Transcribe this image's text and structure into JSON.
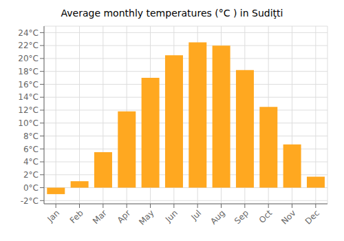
{
  "chart_data": {
    "type": "bar",
    "title": "Average monthly temperatures (°C ) in Sudiţti",
    "categories": [
      "Jan",
      "Feb",
      "Mar",
      "Apr",
      "May",
      "Jun",
      "Jul",
      "Aug",
      "Sep",
      "Oct",
      "Nov",
      "Dec"
    ],
    "values": [
      -1.0,
      1.0,
      5.5,
      11.8,
      17.0,
      20.5,
      22.5,
      22.0,
      18.2,
      12.5,
      6.7,
      1.7
    ],
    "color": "#FFA820",
    "ylim": [
      -2.5,
      25
    ],
    "yticks": [
      {
        "value": -2,
        "label": "-2°C"
      },
      {
        "value": 0,
        "label": "0°C"
      },
      {
        "value": 2,
        "label": "2°C"
      },
      {
        "value": 4,
        "label": "4°C"
      },
      {
        "value": 6,
        "label": "6°C"
      },
      {
        "value": 8,
        "label": "8°C"
      },
      {
        "value": 10,
        "label": "10°C"
      },
      {
        "value": 12,
        "label": "12°C"
      },
      {
        "value": 14,
        "label": "14°C"
      },
      {
        "value": 16,
        "label": "16°C"
      },
      {
        "value": 18,
        "label": "18°C"
      },
      {
        "value": 20,
        "label": "20°C"
      },
      {
        "value": 22,
        "label": "22°C"
      },
      {
        "value": 24,
        "label": "24°C"
      }
    ],
    "grid": true
  }
}
